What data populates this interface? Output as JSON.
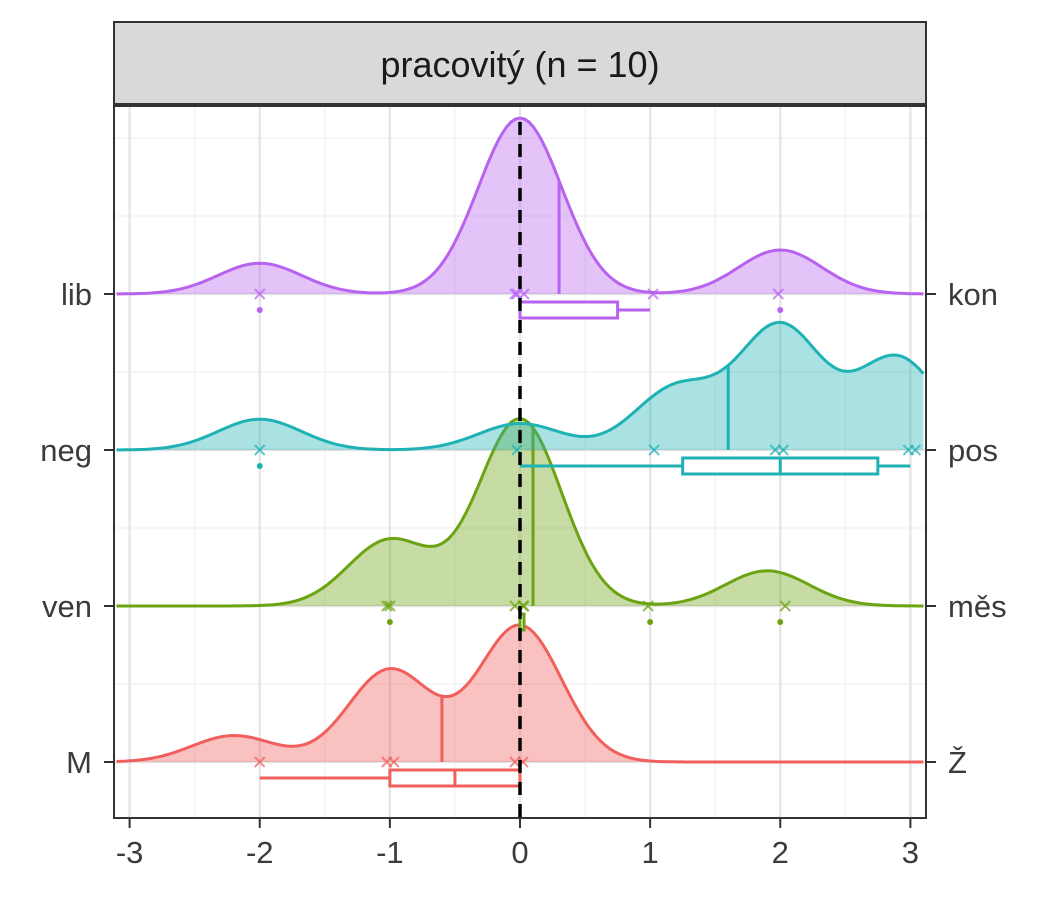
{
  "chart_data": {
    "type": "ridgeline",
    "panel_title": "pracovitý (n = 10)",
    "xlim": [
      -3.12,
      3.12
    ],
    "x_ticks": [
      -3,
      -2,
      -1,
      0,
      1,
      2,
      3
    ],
    "x_tick_labels": [
      "-3",
      "-2",
      "-1",
      "0",
      "1",
      "2",
      "3"
    ],
    "reference_line_x": 0,
    "grid": true,
    "groups": [
      {
        "left_label": "M",
        "right_label": "Ž",
        "color": "#F05F5C",
        "points": [
          -2,
          -1,
          -1,
          0,
          0
        ],
        "median": -0.6,
        "boxplot": {
          "min": -2,
          "q1": -1,
          "median": -0.5,
          "q3": 0,
          "max": 0
        },
        "density_peaks": [
          {
            "x": -2.2,
            "h": 0.12
          },
          {
            "x": -1.0,
            "h": 0.42
          },
          {
            "x": 0.0,
            "h": 0.62
          }
        ]
      },
      {
        "left_label": "ven",
        "right_label": "měs",
        "color": "#6CA312",
        "points": [
          -1,
          -1,
          0,
          0,
          0,
          1,
          2
        ],
        "median": 0.1,
        "boxplot": {
          "min": 0,
          "q1": 0,
          "median": 0,
          "q3": 0,
          "max": 0
        },
        "outliers": [
          -1,
          1,
          2
        ],
        "density_peaks": [
          {
            "x": -1.0,
            "h": 0.3
          },
          {
            "x": 0.0,
            "h": 0.85
          },
          {
            "x": 1.9,
            "h": 0.16
          }
        ]
      },
      {
        "left_label": "neg",
        "right_label": "pos",
        "color": "#1FB2B5",
        "points": [
          -2,
          0,
          1,
          2,
          2,
          3,
          3
        ],
        "median": 1.6,
        "boxplot": {
          "min": 0,
          "q1": 1.25,
          "median": 2,
          "q3": 2.75,
          "max": 3
        },
        "outliers": [
          -2
        ],
        "density_peaks": [
          {
            "x": -2.0,
            "h": 0.14
          },
          {
            "x": 0.0,
            "h": 0.12
          },
          {
            "x": 1.2,
            "h": 0.28
          },
          {
            "x": 2.0,
            "h": 0.56
          },
          {
            "x": 2.9,
            "h": 0.42
          }
        ]
      },
      {
        "left_label": "lib",
        "right_label": "kon",
        "color": "#B862F0",
        "points": [
          -2,
          0,
          0,
          0,
          1,
          2
        ],
        "median": 0.3,
        "boxplot": {
          "min": 0,
          "q1": 0,
          "median": 0,
          "q3": 0.75,
          "max": 1
        },
        "outliers": [
          -2,
          2
        ],
        "density_peaks": [
          {
            "x": -2.0,
            "h": 0.14
          },
          {
            "x": 0.0,
            "h": 0.8
          },
          {
            "x": 2.0,
            "h": 0.2
          }
        ]
      }
    ]
  }
}
